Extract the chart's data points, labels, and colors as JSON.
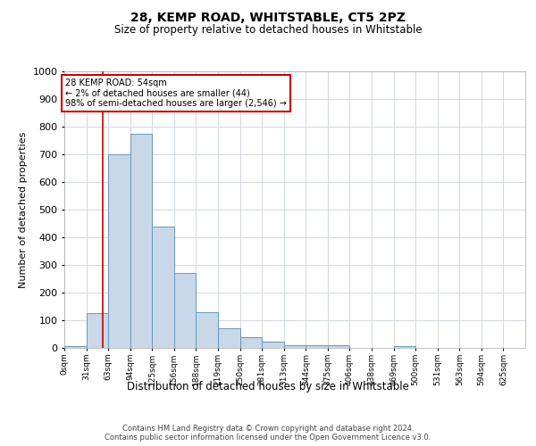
{
  "title": "28, KEMP ROAD, WHITSTABLE, CT5 2PZ",
  "subtitle": "Size of property relative to detached houses in Whitstable",
  "xlabel": "Distribution of detached houses by size in Whitstable",
  "ylabel": "Number of detached properties",
  "bin_labels": [
    "0sqm",
    "31sqm",
    "63sqm",
    "94sqm",
    "125sqm",
    "156sqm",
    "188sqm",
    "219sqm",
    "250sqm",
    "281sqm",
    "313sqm",
    "344sqm",
    "375sqm",
    "406sqm",
    "438sqm",
    "469sqm",
    "500sqm",
    "531sqm",
    "563sqm",
    "594sqm",
    "625sqm"
  ],
  "bar_heights": [
    5,
    125,
    700,
    775,
    440,
    270,
    130,
    70,
    38,
    22,
    10,
    10,
    10,
    0,
    0,
    5,
    0,
    0,
    0,
    0,
    0
  ],
  "bar_color": "#c8d8e8",
  "bar_edge_color": "#6699bb",
  "ylim": [
    0,
    1000
  ],
  "yticks": [
    0,
    100,
    200,
    300,
    400,
    500,
    600,
    700,
    800,
    900,
    1000
  ],
  "vline_x": 54,
  "vline_color": "#cc0000",
  "annotation_text": "28 KEMP ROAD: 54sqm\n← 2% of detached houses are smaller (44)\n98% of semi-detached houses are larger (2,546) →",
  "annotation_box_color": "#ffffff",
  "annotation_box_edge": "#cc0000",
  "footer_line1": "Contains HM Land Registry data © Crown copyright and database right 2024.",
  "footer_line2": "Contains public sector information licensed under the Open Government Licence v3.0.",
  "bg_color": "#ffffff",
  "grid_color": "#d0d8e0",
  "bin_width": 31
}
